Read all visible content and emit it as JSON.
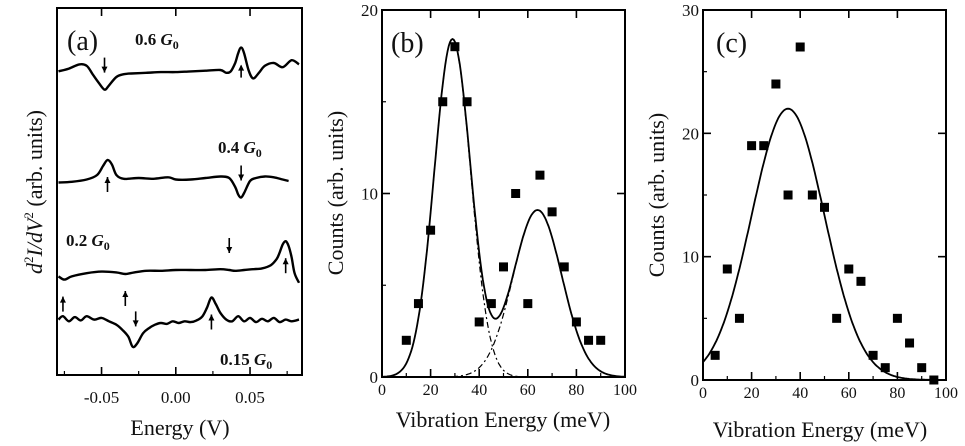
{
  "panels": {
    "a": {
      "label": "(a)",
      "xlabel": "Energy (V)",
      "ylabel_base": "d",
      "ylabel_sup1": "2",
      "ylabel_mid": "I/dV",
      "ylabel_sup2": "2",
      "ylabel_units": " (arb. units)",
      "xticks": [
        "-0.05",
        "0.00",
        "0.05"
      ],
      "curves": [
        {
          "label_value": "0.6 ",
          "label_unit": "G",
          "label_sub": "0"
        },
        {
          "label_value": "0.4 ",
          "label_unit": "G",
          "label_sub": "0"
        },
        {
          "label_value": "0.2 ",
          "label_unit": "G",
          "label_sub": "0"
        },
        {
          "label_value": "0.15 ",
          "label_unit": "G",
          "label_sub": "0"
        }
      ]
    },
    "b": {
      "label": "(b)",
      "xlabel": "Vibration Energy (meV)",
      "ylabel": "Counts (arb. units)",
      "xticks": [
        "0",
        "20",
        "40",
        "60",
        "80",
        "100"
      ],
      "yticks": [
        "0",
        "10",
        "20"
      ]
    },
    "c": {
      "label": "(c)",
      "xlabel": "Vibration Energy (meV)",
      "ylabel": "Counts (arb. units)",
      "xticks": [
        "0",
        "20",
        "40",
        "60",
        "80",
        "100"
      ],
      "yticks": [
        "0",
        "10",
        "20",
        "30"
      ]
    }
  },
  "chart_data": [
    {
      "type": "line",
      "panel": "a",
      "xlim": [
        -0.08,
        0.085
      ],
      "y_scale": "arbitrary, curves vertically offset",
      "series": [
        {
          "name": "0.6 G0",
          "x": [
            -0.079,
            -0.072,
            -0.065,
            -0.06,
            -0.056,
            -0.052,
            -0.048,
            -0.045,
            -0.04,
            -0.035,
            -0.03,
            -0.02,
            -0.01,
            0.0,
            0.01,
            0.02,
            0.03,
            0.034,
            0.037,
            0.04,
            0.042,
            0.044,
            0.046,
            0.049,
            0.052,
            0.056,
            0.06,
            0.066,
            0.072,
            0.078,
            0.083
          ],
          "y": [
            -0.1,
            0.1,
            0.4,
            0.3,
            -0.3,
            -0.9,
            -1.4,
            -1.1,
            -0.5,
            -0.3,
            -0.25,
            -0.2,
            -0.15,
            -0.15,
            -0.1,
            -0.05,
            0.0,
            -0.2,
            -0.1,
            0.5,
            1.2,
            1.6,
            1.2,
            0.0,
            -0.6,
            -0.2,
            0.3,
            0.5,
            0.2,
            0.7,
            0.4
          ],
          "arrows": [
            {
              "x": -0.048,
              "dir": "down"
            },
            {
              "x": 0.044,
              "dir": "up"
            }
          ]
        },
        {
          "name": "0.4 G0",
          "x": [
            -0.079,
            -0.07,
            -0.06,
            -0.053,
            -0.049,
            -0.046,
            -0.043,
            -0.04,
            -0.035,
            -0.025,
            -0.015,
            -0.005,
            0.0,
            0.01,
            0.02,
            0.03,
            0.036,
            0.04,
            0.042,
            0.044,
            0.046,
            0.05,
            0.054,
            0.06,
            0.066,
            0.072,
            0.076
          ],
          "y": [
            -0.3,
            -0.25,
            -0.1,
            0.2,
            0.8,
            1.2,
            0.9,
            0.2,
            -0.05,
            0.0,
            -0.05,
            0.05,
            -0.1,
            -0.1,
            0.0,
            0.1,
            0.0,
            -0.6,
            -1.1,
            -1.3,
            -1.0,
            -0.2,
            0.0,
            0.1,
            0.05,
            -0.1,
            -0.2
          ],
          "arrows": [
            {
              "x": -0.046,
              "dir": "up"
            },
            {
              "x": 0.044,
              "dir": "down"
            }
          ]
        },
        {
          "name": "0.2 G0",
          "x": [
            -0.079,
            -0.075,
            -0.07,
            -0.06,
            -0.05,
            -0.04,
            -0.034,
            -0.028,
            -0.02,
            -0.01,
            0.0,
            0.01,
            0.02,
            0.03,
            0.036,
            0.04,
            0.046,
            0.052,
            0.058,
            0.064,
            0.068,
            0.07,
            0.072,
            0.074,
            0.076,
            0.078,
            0.08,
            0.083
          ],
          "y": [
            -0.4,
            -0.6,
            -0.4,
            -0.2,
            -0.1,
            -0.15,
            -0.25,
            -0.15,
            -0.05,
            -0.05,
            0.0,
            0.0,
            0.0,
            0.05,
            0.0,
            -0.05,
            0.0,
            0.05,
            0.1,
            0.3,
            0.7,
            1.1,
            1.6,
            1.8,
            1.5,
            0.8,
            -0.2,
            -0.8
          ],
          "arrows": [
            {
              "x": -0.076,
              "dir": "up"
            },
            {
              "x": -0.034,
              "dir": "up"
            },
            {
              "x": 0.036,
              "dir": "down"
            },
            {
              "x": 0.074,
              "dir": "up"
            }
          ]
        },
        {
          "name": "0.15 G0",
          "x": [
            -0.079,
            -0.076,
            -0.072,
            -0.068,
            -0.064,
            -0.06,
            -0.055,
            -0.05,
            -0.045,
            -0.04,
            -0.036,
            -0.032,
            -0.029,
            -0.026,
            -0.022,
            -0.018,
            -0.014,
            -0.01,
            -0.006,
            -0.002,
            0.002,
            0.006,
            0.01,
            0.014,
            0.018,
            0.021,
            0.024,
            0.027,
            0.03,
            0.034,
            0.038,
            0.042,
            0.046,
            0.05,
            0.054,
            0.058,
            0.062,
            0.066,
            0.07,
            0.074,
            0.078,
            0.083
          ],
          "y": [
            0.2,
            0.4,
            0.1,
            0.35,
            0.15,
            0.4,
            0.2,
            0.3,
            0.1,
            -0.1,
            -0.4,
            -0.8,
            -1.4,
            -1.2,
            -0.6,
            -0.3,
            -0.1,
            0.0,
            -0.05,
            0.1,
            0.0,
            0.1,
            0.05,
            0.15,
            0.4,
            0.9,
            1.5,
            1.1,
            0.6,
            0.2,
            0.1,
            0.4,
            0.1,
            0.3,
            0.05,
            0.25,
            0.1,
            0.3,
            0.05,
            0.2,
            0.1,
            0.2
          ],
          "arrows": [
            {
              "x": -0.027,
              "dir": "down"
            },
            {
              "x": 0.024,
              "dir": "up"
            }
          ]
        }
      ]
    },
    {
      "type": "scatter",
      "panel": "b",
      "xlabel": "Vibration Energy (meV)",
      "ylabel": "Counts (arb. units)",
      "xlim": [
        0,
        100
      ],
      "ylim": [
        0,
        20
      ],
      "points": {
        "x": [
          10,
          15,
          20,
          25,
          30,
          35,
          40,
          45,
          50,
          55,
          60,
          65,
          70,
          75,
          80,
          85,
          90
        ],
        "y": [
          2,
          4,
          8,
          15,
          18,
          15,
          3,
          4,
          6,
          10,
          4,
          11,
          9,
          6,
          3,
          2,
          2
        ]
      },
      "fits": [
        {
          "shape": "gaussian",
          "style": "dash-dot",
          "amplitude": 18.4,
          "center": 29,
          "sigma": 7.5
        },
        {
          "shape": "gaussian",
          "style": "dash-dot",
          "amplitude": 9.1,
          "center": 64,
          "sigma": 10
        },
        {
          "shape": "gaussian-sum",
          "style": "solid"
        }
      ]
    },
    {
      "type": "scatter",
      "panel": "c",
      "xlabel": "Vibration Energy (meV)",
      "ylabel": "Counts (arb. units)",
      "xlim": [
        0,
        100
      ],
      "ylim": [
        0,
        30
      ],
      "points": {
        "x": [
          5,
          10,
          15,
          20,
          25,
          30,
          35,
          40,
          45,
          50,
          55,
          60,
          65,
          70,
          75,
          80,
          85,
          90,
          95
        ],
        "y": [
          2,
          9,
          5,
          19,
          19,
          24,
          15,
          27,
          15,
          14,
          5,
          9,
          8,
          2,
          1,
          5,
          3,
          1,
          0
        ]
      },
      "fits": [
        {
          "shape": "gaussian",
          "style": "solid",
          "amplitude": 22,
          "center": 35,
          "sigma": 15
        }
      ]
    }
  ]
}
